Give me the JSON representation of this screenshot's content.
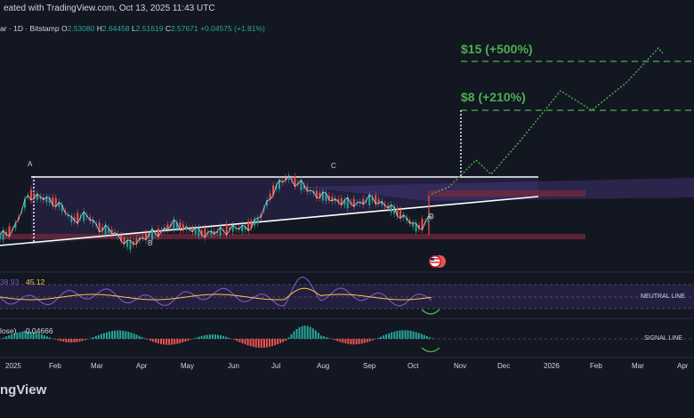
{
  "header": {
    "text": "eated with TradingView.com, Oct 13, 2025 11:43 UTC"
  },
  "symbol_bar": {
    "name": "ar · 1D · Bitstamp",
    "o_label": "O",
    "o_value": "2.53080",
    "h_label": "H",
    "h_value": "2.64458",
    "l_label": "L",
    "l_value": "2.51619",
    "c_label": "C",
    "c_value": "2.57671",
    "change": "+0.04575 (+1.81%)"
  },
  "annotations": {
    "target_15": "$15 (+500%)",
    "target_8": "$8 (+210%)",
    "point_a": "A",
    "point_b": "B",
    "point_c": "C",
    "point_d": "D"
  },
  "rsi": {
    "value1": "38.93",
    "value2": "45.12",
    "neutral_label": "NEUTRAL LINE"
  },
  "macd": {
    "label": "lose)",
    "value": "-0.04666",
    "signal_label": "SIGNAL LINE"
  },
  "x_axis": {
    "labels": [
      "2025",
      "Feb",
      "Mar",
      "Apr",
      "May",
      "Jun",
      "Jul",
      "Aug",
      "Sep",
      "Oct",
      "Nov",
      "Dec",
      "2026",
      "Feb",
      "Mar",
      "Apr"
    ]
  },
  "footer": {
    "brand": "ngView"
  },
  "colors": {
    "background": "#131722",
    "up": "#26a69a",
    "down": "#ef5350",
    "target": "#4caf50",
    "rsi": "#7e57c2",
    "rsi_ma": "#f7c948"
  },
  "chart_data": {
    "type": "line",
    "x_range": [
      "2024-12",
      "2026-04"
    ],
    "series": [
      {
        "values": [
          2.1,
          2.3,
          3.1,
          3.0,
          2.9,
          2.5,
          2.6,
          2.3,
          2.2,
          1.9,
          2.1,
          2.2,
          2.4,
          2.3,
          2.2,
          2.2,
          2.3,
          2.3,
          2.5,
          3.2,
          3.5,
          3.3,
          3.1,
          3.0,
          2.9,
          2.9,
          3.0,
          2.8,
          2.6,
          2.3,
          2.57
        ]
      }
    ],
    "projection": [
      2.57,
      3.3,
      3.0,
      4.2,
      6.0,
      8.0,
      7.0,
      10.0,
      15.0
    ],
    "targets": [
      15,
      8
    ]
  }
}
